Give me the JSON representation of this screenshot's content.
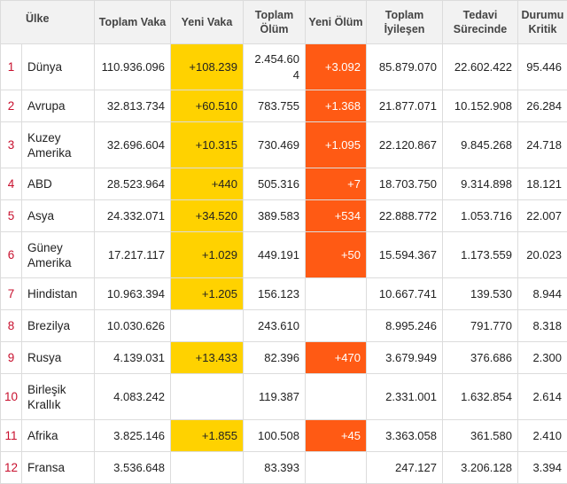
{
  "headers": {
    "country": "Ülke",
    "total_cases": "Toplam Vaka",
    "new_cases": "Yeni Vaka",
    "total_deaths": "Toplam Ölüm",
    "new_deaths": "Yeni Ölüm",
    "total_recovered": "Toplam İyileşen",
    "active": "Tedavi Sürecinde",
    "critical": "Durumu Kritik"
  },
  "colors": {
    "new_cases_highlight": "#ffd200",
    "new_deaths_highlight": "#ff5a14",
    "rank_text": "#c8102e"
  },
  "rows": [
    {
      "rank": "1",
      "country": "Dünya",
      "total_cases": "110.936.096",
      "new_cases": "+108.239",
      "total_deaths": "2.454.604",
      "new_deaths": "+3.092",
      "total_recovered": "85.879.070",
      "active": "22.602.422",
      "critical": "95.446"
    },
    {
      "rank": "2",
      "country": "Avrupa",
      "total_cases": "32.813.734",
      "new_cases": "+60.510",
      "total_deaths": "783.755",
      "new_deaths": "+1.368",
      "total_recovered": "21.877.071",
      "active": "10.152.908",
      "critical": "26.284"
    },
    {
      "rank": "3",
      "country": "Kuzey Amerika",
      "total_cases": "32.696.604",
      "new_cases": "+10.315",
      "total_deaths": "730.469",
      "new_deaths": "+1.095",
      "total_recovered": "22.120.867",
      "active": "9.845.268",
      "critical": "24.718"
    },
    {
      "rank": "4",
      "country": "ABD",
      "total_cases": "28.523.964",
      "new_cases": "+440",
      "total_deaths": "505.316",
      "new_deaths": "+7",
      "total_recovered": "18.703.750",
      "active": "9.314.898",
      "critical": "18.121"
    },
    {
      "rank": "5",
      "country": "Asya",
      "total_cases": "24.332.071",
      "new_cases": "+34.520",
      "total_deaths": "389.583",
      "new_deaths": "+534",
      "total_recovered": "22.888.772",
      "active": "1.053.716",
      "critical": "22.007"
    },
    {
      "rank": "6",
      "country": "Güney Amerika",
      "total_cases": "17.217.117",
      "new_cases": "+1.029",
      "total_deaths": "449.191",
      "new_deaths": "+50",
      "total_recovered": "15.594.367",
      "active": "1.173.559",
      "critical": "20.023"
    },
    {
      "rank": "7",
      "country": "Hindistan",
      "total_cases": "10.963.394",
      "new_cases": "+1.205",
      "total_deaths": "156.123",
      "new_deaths": "",
      "total_recovered": "10.667.741",
      "active": "139.530",
      "critical": "8.944"
    },
    {
      "rank": "8",
      "country": "Brezilya",
      "total_cases": "10.030.626",
      "new_cases": "",
      "total_deaths": "243.610",
      "new_deaths": "",
      "total_recovered": "8.995.246",
      "active": "791.770",
      "critical": "8.318"
    },
    {
      "rank": "9",
      "country": "Rusya",
      "total_cases": "4.139.031",
      "new_cases": "+13.433",
      "total_deaths": "82.396",
      "new_deaths": "+470",
      "total_recovered": "3.679.949",
      "active": "376.686",
      "critical": "2.300"
    },
    {
      "rank": "10",
      "country": "Birleşik Krallık",
      "total_cases": "4.083.242",
      "new_cases": "",
      "total_deaths": "119.387",
      "new_deaths": "",
      "total_recovered": "2.331.001",
      "active": "1.632.854",
      "critical": "2.614"
    },
    {
      "rank": "11",
      "country": "Afrika",
      "total_cases": "3.825.146",
      "new_cases": "+1.855",
      "total_deaths": "100.508",
      "new_deaths": "+45",
      "total_recovered": "3.363.058",
      "active": "361.580",
      "critical": "2.410"
    },
    {
      "rank": "12",
      "country": "Fransa",
      "total_cases": "3.536.648",
      "new_cases": "",
      "total_deaths": "83.393",
      "new_deaths": "",
      "total_recovered": "247.127",
      "active": "3.206.128",
      "critical": "3.394"
    }
  ]
}
